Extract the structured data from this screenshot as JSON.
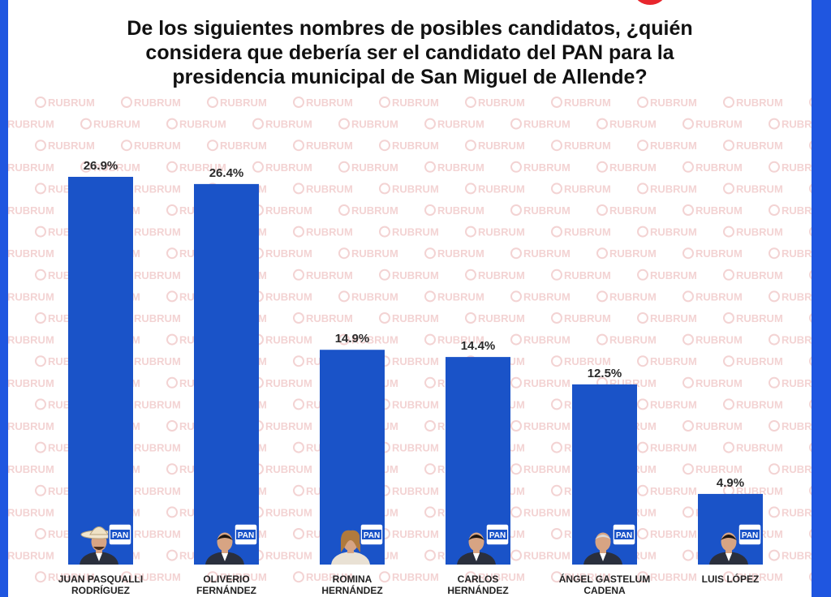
{
  "title_lines": [
    "De los siguientes nombres de posibles candidatos, ¿quién",
    "considera que debería ser el candidato del PAN para la",
    "presidencia municipal de San Miguel de Allende?"
  ],
  "watermark_text": "RUBRUM",
  "party_badge": "PAN",
  "colors": {
    "bar": "#1a53c8",
    "frame": "#1f56e0",
    "watermark": "#f3d3d3",
    "logo": "#e8262d"
  },
  "chart_data": {
    "type": "bar",
    "title": "De los siguientes nombres de posibles candidatos, ¿quién considera que debería ser el candidato del PAN para la presidencia municipal de San Miguel de Allende?",
    "categories": [
      [
        "JUAN PASQUALLI",
        "RODRÍGUEZ"
      ],
      [
        "OLIVERIO",
        "FERNÁNDEZ"
      ],
      [
        "ROMINA",
        "HERNÁNDEZ"
      ],
      [
        "CARLOS",
        "HERNÁNDEZ"
      ],
      [
        "ÁNGEL GASTELUM",
        "CADENA"
      ],
      [
        "LUIS LÓPEZ"
      ]
    ],
    "values": [
      26.9,
      26.4,
      14.9,
      14.4,
      12.5,
      4.9
    ],
    "value_labels": [
      "26.9%",
      "26.4%",
      "14.9%",
      "14.4%",
      "12.5%",
      "4.9%"
    ],
    "xlabel": "",
    "ylabel": "",
    "ylim": [
      0,
      26.9
    ],
    "grid": false,
    "legend": "none"
  }
}
